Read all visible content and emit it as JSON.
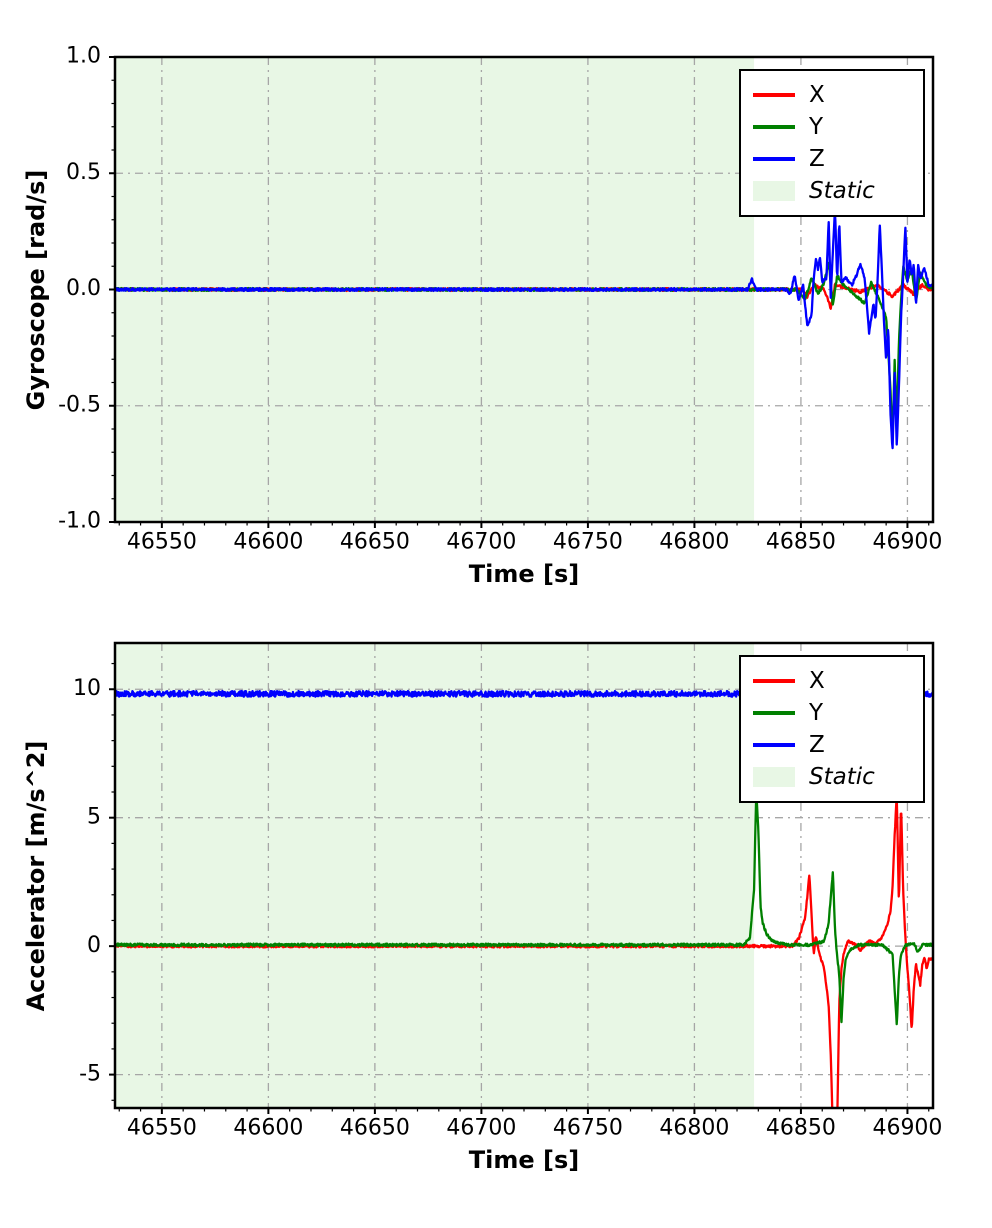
{
  "figure": {
    "background": "#ffffff",
    "grid_color": "#a6a6a6",
    "spine_color": "#000000",
    "text_color": "#000000"
  },
  "chart_data": [
    {
      "name": "gyroscope",
      "type": "line",
      "title": "",
      "xlabel": "Time [s]",
      "ylabel": "Gyroscope [rad/s]",
      "xlim": [
        46528,
        46912
      ],
      "ylim": [
        -1.0,
        1.0
      ],
      "xticks": [
        46550,
        46600,
        46650,
        46700,
        46750,
        46800,
        46850,
        46900
      ],
      "xtick_labels": [
        "46550",
        "46600",
        "46650",
        "46700",
        "46750",
        "46800",
        "46850",
        "46900"
      ],
      "yticks": [
        -1.0,
        -0.5,
        0.0,
        0.5,
        1.0
      ],
      "ytick_labels": [
        "-1.0",
        "-0.5",
        "0.0",
        "0.5",
        "1.0"
      ],
      "x_minor_step": 10,
      "y_minor_step": 0.1,
      "grid": true,
      "legend_position": "upper right",
      "static_region": {
        "label": "Static",
        "x0": 46528,
        "x1": 46828,
        "color": "#e8f7e5"
      },
      "series": [
        {
          "name": "X",
          "color": "#ff0000",
          "noise": 0.006,
          "points": [
            [
              46528,
              0
            ],
            [
              46850,
              0
            ],
            [
              46853,
              -0.03
            ],
            [
              46856,
              0.02
            ],
            [
              46861,
              0
            ],
            [
              46864,
              -0.08
            ],
            [
              46866,
              0.02
            ],
            [
              46870,
              0.01
            ],
            [
              46878,
              -0.01
            ],
            [
              46886,
              0.02
            ],
            [
              46893,
              -0.03
            ],
            [
              46898,
              0.02
            ],
            [
              46903,
              -0.02
            ],
            [
              46907,
              0.02
            ],
            [
              46910,
              0
            ]
          ]
        },
        {
          "name": "Y",
          "color": "#008000",
          "noise": 0.006,
          "points": [
            [
              46528,
              0
            ],
            [
              46848,
              0
            ],
            [
              46852,
              -0.04
            ],
            [
              46855,
              0.05
            ],
            [
              46858,
              -0.02
            ],
            [
              46861,
              0.03
            ],
            [
              46863,
              0.12
            ],
            [
              46865,
              -0.07
            ],
            [
              46867,
              0.06
            ],
            [
              46870,
              0.02
            ],
            [
              46875,
              -0.02
            ],
            [
              46880,
              -0.06
            ],
            [
              46883,
              0.03
            ],
            [
              46887,
              -0.05
            ],
            [
              46890,
              -0.12
            ],
            [
              46892,
              -0.42
            ],
            [
              46893,
              -0.66
            ],
            [
              46894,
              -0.3
            ],
            [
              46895,
              -0.6
            ],
            [
              46896,
              -0.22
            ],
            [
              46897,
              -0.05
            ],
            [
              46898,
              0.1
            ],
            [
              46900,
              0.04
            ],
            [
              46902,
              0.09
            ],
            [
              46904,
              -0.05
            ],
            [
              46906,
              0.07
            ],
            [
              46908,
              0.03
            ],
            [
              46910,
              0.01
            ]
          ]
        },
        {
          "name": "Z",
          "color": "#0000ff",
          "noise": 0.006,
          "points": [
            [
              46528,
              0
            ],
            [
              46825,
              0
            ],
            [
              46827,
              0.045
            ],
            [
              46829,
              0
            ],
            [
              46843,
              0
            ],
            [
              46845,
              -0.02
            ],
            [
              46847,
              0.06
            ],
            [
              46849,
              -0.05
            ],
            [
              46851,
              0.02
            ],
            [
              46853,
              -0.16
            ],
            [
              46855,
              -0.11
            ],
            [
              46856,
              0.05
            ],
            [
              46857,
              0.13
            ],
            [
              46858,
              0.09
            ],
            [
              46859,
              0.14
            ],
            [
              46860,
              0.03
            ],
            [
              46862,
              0.05
            ],
            [
              46863,
              0.3
            ],
            [
              46864,
              -0.03
            ],
            [
              46866,
              0.35
            ],
            [
              46867,
              0.04
            ],
            [
              46868,
              0.29
            ],
            [
              46869,
              0.03
            ],
            [
              46871,
              0.05
            ],
            [
              46874,
              0.02
            ],
            [
              46876,
              0.06
            ],
            [
              46878,
              0.11
            ],
            [
              46880,
              0.04
            ],
            [
              46882,
              -0.19
            ],
            [
              46884,
              -0.06
            ],
            [
              46885,
              -0.13
            ],
            [
              46886,
              0.04
            ],
            [
              46887,
              0.28
            ],
            [
              46888,
              0.08
            ],
            [
              46889,
              -0.14
            ],
            [
              46890,
              -0.31
            ],
            [
              46891,
              -0.16
            ],
            [
              46892,
              -0.52
            ],
            [
              46893,
              -0.69
            ],
            [
              46894,
              -0.36
            ],
            [
              46895,
              -0.68
            ],
            [
              46896,
              -0.42
            ],
            [
              46897,
              -0.12
            ],
            [
              46898,
              0.06
            ],
            [
              46899,
              0.27
            ],
            [
              46900,
              0.03
            ],
            [
              46901,
              0.13
            ],
            [
              46902,
              0.06
            ],
            [
              46903,
              0.11
            ],
            [
              46904,
              -0.07
            ],
            [
              46905,
              0.11
            ],
            [
              46906,
              0.05
            ],
            [
              46908,
              0.09
            ],
            [
              46910,
              0.02
            ]
          ]
        }
      ]
    },
    {
      "name": "accelerator",
      "type": "line",
      "title": "",
      "xlabel": "Time [s]",
      "ylabel": "Accelerator [m/s^2]",
      "xlim": [
        46528,
        46912
      ],
      "ylim": [
        -6.3,
        11.8
      ],
      "xticks": [
        46550,
        46600,
        46650,
        46700,
        46750,
        46800,
        46850,
        46900
      ],
      "xtick_labels": [
        "46550",
        "46600",
        "46650",
        "46700",
        "46750",
        "46800",
        "46850",
        "46900"
      ],
      "yticks": [
        -5,
        0,
        5,
        10
      ],
      "ytick_labels": [
        "-5",
        "0",
        "5",
        "10"
      ],
      "x_minor_step": 10,
      "y_minor_step": 1,
      "grid": true,
      "legend_position": "upper right",
      "static_region": {
        "label": "Static",
        "x0": 46528,
        "x1": 46828,
        "color": "#e8f7e5"
      },
      "series": [
        {
          "name": "X",
          "color": "#ff0000",
          "noise": 0.05,
          "points": [
            [
              46528,
              0
            ],
            [
              46846,
              0
            ],
            [
              46849,
              0.3
            ],
            [
              46852,
              1.1
            ],
            [
              46854,
              2.8
            ],
            [
              46855,
              1.2
            ],
            [
              46856,
              -0.3
            ],
            [
              46857,
              0.4
            ],
            [
              46859,
              -0.4
            ],
            [
              46861,
              -0.9
            ],
            [
              46863,
              -2.3
            ],
            [
              46864,
              -4.2
            ],
            [
              46865,
              -7.2
            ],
            [
              46866,
              -6.8
            ],
            [
              46867,
              -7.0
            ],
            [
              46868,
              -2.2
            ],
            [
              46869,
              -0.9
            ],
            [
              46870,
              -0.3
            ],
            [
              46872,
              0.2
            ],
            [
              46875,
              0.1
            ],
            [
              46878,
              -0.15
            ],
            [
              46882,
              0.2
            ],
            [
              46885,
              0.1
            ],
            [
              46888,
              0.35
            ],
            [
              46890,
              0.7
            ],
            [
              46892,
              1.3
            ],
            [
              46893,
              2.3
            ],
            [
              46894,
              4.3
            ],
            [
              46895,
              5.9
            ],
            [
              46896,
              1.6
            ],
            [
              46897,
              5.6
            ],
            [
              46898,
              2.1
            ],
            [
              46899,
              0.4
            ],
            [
              46900,
              -0.9
            ],
            [
              46901,
              -1.9
            ],
            [
              46902,
              -3.3
            ],
            [
              46903,
              -1.6
            ],
            [
              46904,
              -0.7
            ],
            [
              46905,
              -1.1
            ],
            [
              46906,
              -1.5
            ],
            [
              46907,
              -0.7
            ],
            [
              46908,
              -0.4
            ],
            [
              46909,
              -0.9
            ],
            [
              46910,
              -0.5
            ]
          ]
        },
        {
          "name": "Y",
          "color": "#008000",
          "noise": 0.05,
          "points": [
            [
              46528,
              0.05
            ],
            [
              46823,
              0.05
            ],
            [
              46826,
              0.3
            ],
            [
              46828,
              2.2
            ],
            [
              46829,
              6.0
            ],
            [
              46830,
              4.6
            ],
            [
              46831,
              1.6
            ],
            [
              46832,
              0.9
            ],
            [
              46834,
              0.45
            ],
            [
              46836,
              0.25
            ],
            [
              46839,
              0.12
            ],
            [
              46843,
              0.06
            ],
            [
              46855,
              0.05
            ],
            [
              46861,
              0.2
            ],
            [
              46863,
              0.9
            ],
            [
              46865,
              2.9
            ],
            [
              46866,
              0.6
            ],
            [
              46867,
              -0.4
            ],
            [
              46868,
              -1.1
            ],
            [
              46869,
              -3.0
            ],
            [
              46870,
              -1.3
            ],
            [
              46871,
              -0.5
            ],
            [
              46873,
              -0.15
            ],
            [
              46877,
              0.05
            ],
            [
              46888,
              0.05
            ],
            [
              46893,
              -0.3
            ],
            [
              46895,
              -3.1
            ],
            [
              46896,
              -1.1
            ],
            [
              46897,
              -0.35
            ],
            [
              46899,
              0.05
            ],
            [
              46903,
              0.12
            ],
            [
              46905,
              -0.25
            ],
            [
              46907,
              0.05
            ],
            [
              46910,
              0.05
            ]
          ]
        },
        {
          "name": "Z",
          "color": "#0000ff",
          "noise": 0.11,
          "points": [
            [
              46528,
              9.82
            ],
            [
              46910,
              9.82
            ]
          ]
        }
      ]
    }
  ]
}
